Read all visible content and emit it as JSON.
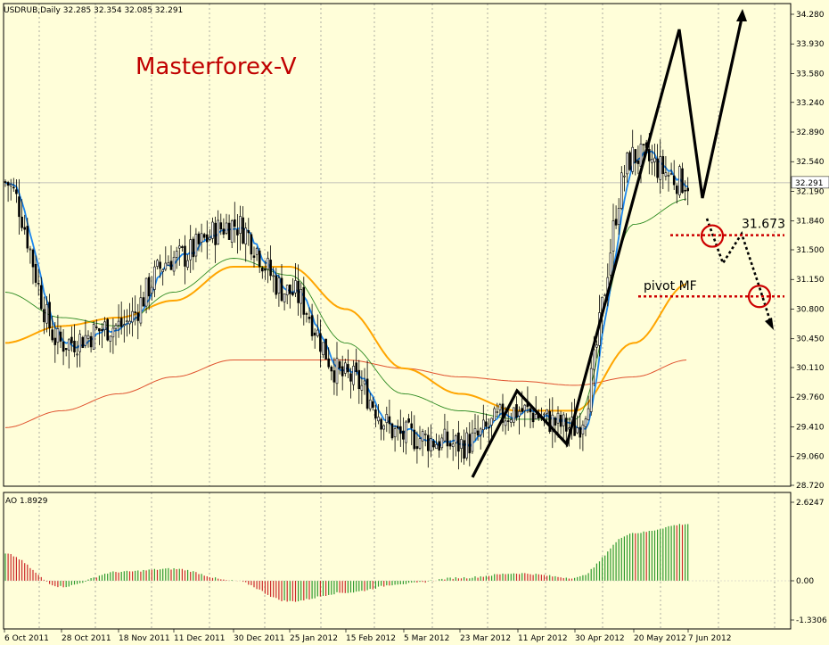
{
  "header": {
    "info": "USDRUB,Daily  32.285 32.354 32.085 32.291",
    "watermark": "Masterforex-V"
  },
  "price_axis": {
    "ticks": [
      "34.280",
      "33.930",
      "33.580",
      "33.240",
      "32.890",
      "32.540",
      "32.190",
      "31.840",
      "31.500",
      "31.150",
      "30.800",
      "30.450",
      "30.110",
      "29.760",
      "29.410",
      "29.060",
      "28.720"
    ],
    "tick_values": [
      34.28,
      33.93,
      33.58,
      33.24,
      32.89,
      32.54,
      32.19,
      31.84,
      31.5,
      31.15,
      30.8,
      30.45,
      30.11,
      29.76,
      29.41,
      29.06,
      28.72
    ],
    "current_label": "32.291",
    "current_value": 32.291
  },
  "ao_axis": {
    "label": "AO 1.8929",
    "ticks": [
      "2.6247",
      "0.00",
      "-1.3306"
    ],
    "tick_values": [
      2.6247,
      0,
      -1.3306
    ]
  },
  "date_axis": [
    "6 Oct 2011",
    "28 Oct 2011",
    "18 Nov 2011",
    "11 Dec 2011",
    "30 Dec 2011",
    "25 Jan 2012",
    "15 Feb 2012",
    "5 Mar 2012",
    "23 Mar 2012",
    "11 Apr 2012",
    "30 Apr 2012",
    "20 May 2012",
    "7 Jun 2012"
  ],
  "annotations": {
    "level_high": "31.673",
    "level_high_value": 31.673,
    "pivot": "pivot MF",
    "pivot_value": 30.95
  },
  "colors": {
    "bg": "#fffed9",
    "grid": "#8a8a8a",
    "candles": "#000000",
    "ma_blue": "#1c86ee",
    "ma_green": "#2e8b22",
    "ma_orange": "#ffa500",
    "ma_red": "#e0522e",
    "watermark": "#c00000",
    "ao_up": "#2e9a2e",
    "ao_down": "#cc2a2a",
    "annotation_red": "#cc0000"
  },
  "chart_data": {
    "type": "line",
    "title": "USDRUB,Daily",
    "x": [
      "6 Oct 2011",
      "28 Oct 2011",
      "18 Nov 2011",
      "11 Dec 2011",
      "30 Dec 2011",
      "25 Jan 2012",
      "15 Feb 2012",
      "5 Mar 2012",
      "23 Mar 2012",
      "11 Apr 2012",
      "30 Apr 2012",
      "20 May 2012",
      "7 Jun 2012"
    ],
    "ylim": [
      28.72,
      34.28
    ],
    "series": [
      {
        "values": [
          32.3,
          30.4,
          30.6,
          31.4,
          31.8,
          31.0,
          30.0,
          29.3,
          29.2,
          29.6,
          29.4,
          32.6,
          32.3
        ]
      },
      {
        "values": [
          31.0,
          30.7,
          30.6,
          31.0,
          31.4,
          31.2,
          30.4,
          29.8,
          29.6,
          29.5,
          29.5,
          31.8,
          32.1
        ]
      },
      {
        "values": [
          30.4,
          30.6,
          30.7,
          30.9,
          31.3,
          31.3,
          30.8,
          30.1,
          29.8,
          29.6,
          29.6,
          30.4,
          31.1
        ]
      },
      {
        "values": [
          29.4,
          29.6,
          29.8,
          30.0,
          30.2,
          30.2,
          30.2,
          30.1,
          30.0,
          29.95,
          29.9,
          30.0,
          30.2
        ]
      }
    ],
    "ao": {
      "values": [
        0.9,
        -0.2,
        0.3,
        0.4,
        0.0,
        -0.7,
        -0.4,
        -0.1,
        0.1,
        0.25,
        0.1,
        1.6,
        1.9
      ]
    }
  }
}
